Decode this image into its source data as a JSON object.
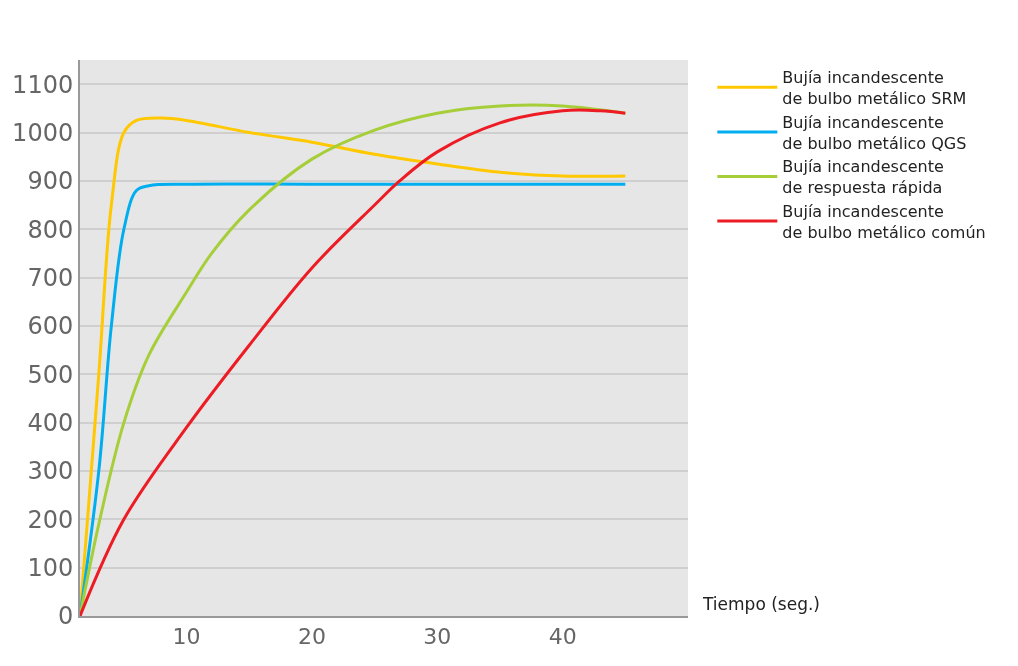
{
  "chart_data": {
    "type": "line",
    "xlabel": "Tiempo (seg.)",
    "xlim": [
      1.5,
      50
    ],
    "xticks": [
      10,
      20,
      30,
      40
    ],
    "ylim": [
      0,
      1150
    ],
    "yticks": [
      0,
      100,
      200,
      300,
      400,
      500,
      600,
      700,
      800,
      900,
      1000,
      1100
    ],
    "grid": "y",
    "legend": "right",
    "marker": "none",
    "line_style": "solid",
    "series": [
      {
        "name": "Bujía incandescente\nde bulbo metálico SRM",
        "color": "#ffc800",
        "x": [
          1.5,
          3,
          4,
          5,
          6,
          8,
          10,
          15,
          20,
          25,
          30,
          35,
          40,
          45
        ],
        "values": [
          0,
          500,
          850,
          1000,
          1025,
          1030,
          1025,
          1000,
          980,
          955,
          935,
          918,
          910,
          910
        ]
      },
      {
        "name": "Bujía incandescente\nde bulbo metálico QGS",
        "color": "#00aeef",
        "x": [
          1.5,
          3,
          4,
          5,
          6,
          7,
          10,
          20,
          30,
          45
        ],
        "values": [
          0,
          300,
          600,
          800,
          880,
          890,
          893,
          893,
          893,
          893
        ]
      },
      {
        "name": "Bujía incandescente\nde respuesta rápida",
        "color": "#a6ce39",
        "x": [
          1.5,
          3,
          5,
          7,
          10,
          12,
          15,
          20,
          25,
          30,
          35,
          40,
          45
        ],
        "values": [
          0,
          190,
          400,
          540,
          670,
          750,
          840,
          945,
          1005,
          1040,
          1055,
          1055,
          1040
        ]
      },
      {
        "name": "Bujía incandescente\nde bulbo metálico común",
        "color": "#ed1c24",
        "x": [
          1.5,
          5,
          10,
          15,
          20,
          25,
          27,
          30,
          35,
          40,
          43,
          45
        ],
        "values": [
          0,
          200,
          390,
          560,
          720,
          850,
          900,
          960,
          1020,
          1045,
          1045,
          1040
        ]
      }
    ]
  }
}
